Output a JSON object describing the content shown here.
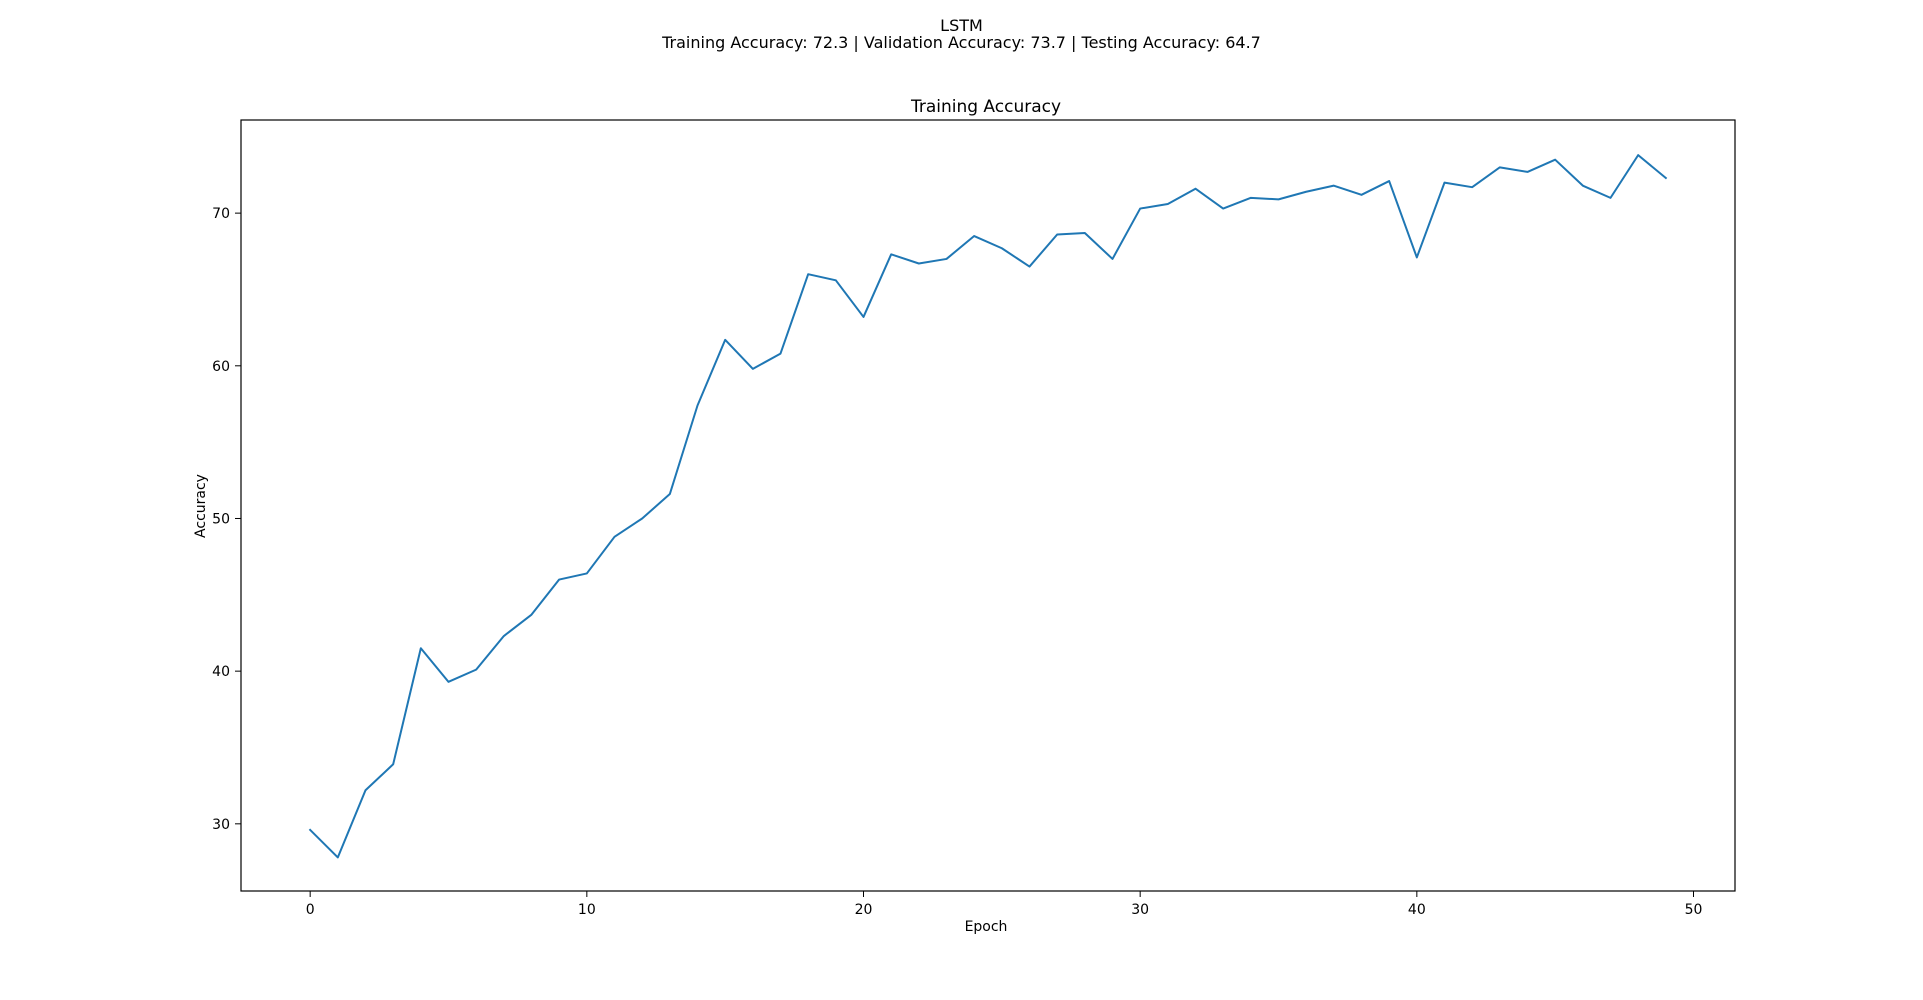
{
  "figure": {
    "suptitle": "LSTM",
    "subtitle": "Training Accuracy: 72.3 | Validation Accuracy: 73.7 | Testing Accuracy: 64.7"
  },
  "chart_data": {
    "type": "line",
    "title": "Training Accuracy",
    "xlabel": "Epoch",
    "ylabel": "Accuracy",
    "xlim": [
      -2.5,
      51.5
    ],
    "ylim": [
      25.6,
      76.1
    ],
    "xticks": [
      0,
      10,
      20,
      30,
      40,
      50
    ],
    "yticks": [
      30,
      40,
      50,
      60,
      70
    ],
    "xtick_labels": [
      "0",
      "10",
      "20",
      "30",
      "40",
      "50"
    ],
    "ytick_labels": [
      "30",
      "40",
      "50",
      "60",
      "70"
    ],
    "grid": false,
    "line_color": "#1f77b4",
    "series": [
      {
        "x": [
          0,
          1,
          2,
          3,
          4,
          5,
          6,
          7,
          8,
          9,
          10,
          11,
          12,
          13,
          14,
          15,
          16,
          17,
          18,
          19,
          20,
          21,
          22,
          23,
          24,
          25,
          26,
          27,
          28,
          29,
          30,
          31,
          32,
          33,
          34,
          35,
          36,
          37,
          38,
          39,
          40,
          41,
          42,
          43,
          44,
          45,
          46,
          47,
          48,
          49
        ],
        "values": [
          29.6,
          27.8,
          32.2,
          33.9,
          41.5,
          39.3,
          40.1,
          42.3,
          43.7,
          46.0,
          46.4,
          48.8,
          50.0,
          51.6,
          57.4,
          61.7,
          59.8,
          60.8,
          66.0,
          65.6,
          63.2,
          67.3,
          66.7,
          67.0,
          68.5,
          67.7,
          66.5,
          68.6,
          68.7,
          67.0,
          70.3,
          70.6,
          71.6,
          70.3,
          71.0,
          70.9,
          71.4,
          71.8,
          71.2,
          72.1,
          67.1,
          72.0,
          71.7,
          73.0,
          72.7,
          73.5,
          71.8,
          71.0,
          73.8,
          72.3
        ]
      }
    ]
  }
}
